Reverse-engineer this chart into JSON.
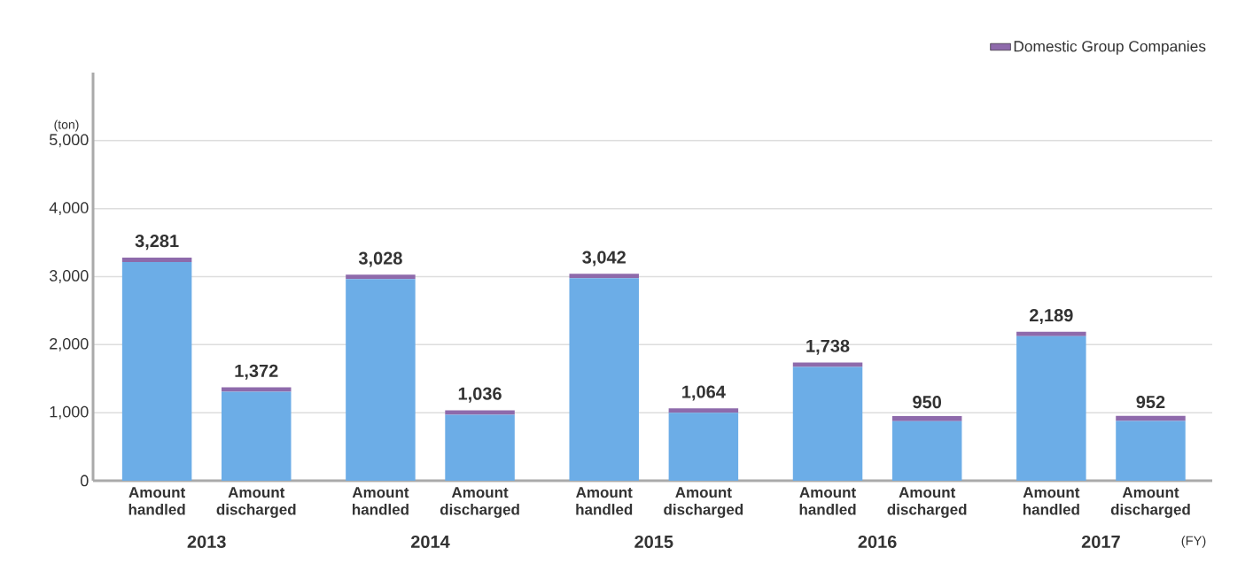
{
  "chart_data": {
    "type": "bar",
    "stacked": true,
    "ylabel": "(ton)",
    "xlabel": "(FY)",
    "categories": [
      "Amount handled",
      "Amount discharged",
      "Amount handled",
      "Amount discharged",
      "Amount handled",
      "Amount discharged",
      "Amount handled",
      "Amount discharged",
      "Amount handled",
      "Amount discharged"
    ],
    "series": [
      {
        "color": "#6cade7",
        "values": [
          3216,
          1307,
          2963,
          971,
          2977,
          999,
          1673,
          875,
          2124,
          877
        ]
      },
      {
        "name": "Domestic Group Companies",
        "color": "#8e6aab",
        "values": [
          65,
          65,
          65,
          65,
          65,
          65,
          65,
          75,
          65,
          75
        ]
      }
    ],
    "totals": [
      "3,281",
      "1,372",
      "3,028",
      "1,036",
      "3,042",
      "1,064",
      "1,738",
      "950",
      "2,189",
      "952"
    ],
    "ylim": [
      0,
      6000
    ],
    "yticks": [
      0,
      {
        "value": 1000,
        "label": "1,000"
      },
      {
        "value": 2000,
        "label": "2,000"
      },
      {
        "value": 3000,
        "label": "3,000"
      },
      {
        "value": 4000,
        "label": "4,000"
      },
      {
        "value": 5000,
        "label": "5,000"
      }
    ],
    "grid": "y",
    "legend": "top right",
    "annotations": [
      "2013",
      "2014",
      "2015",
      "2016",
      "2017"
    ]
  }
}
